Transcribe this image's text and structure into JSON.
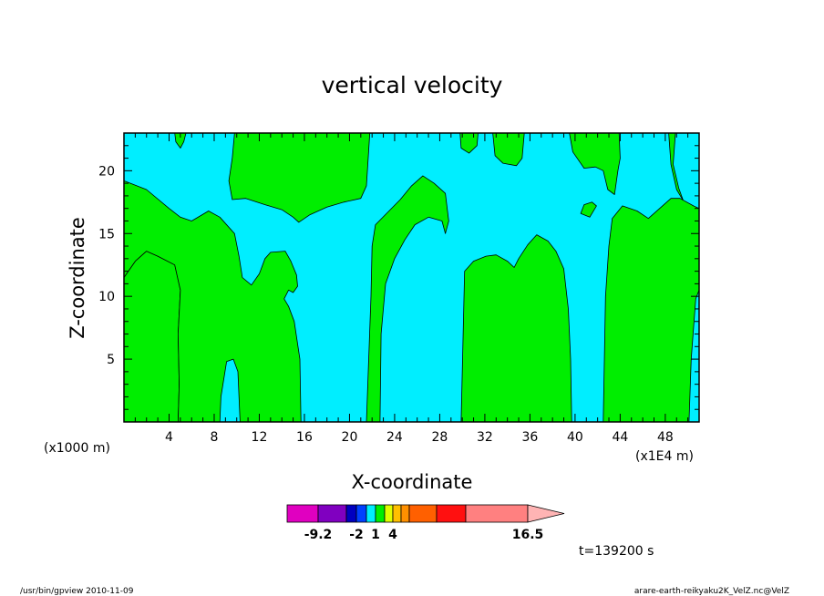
{
  "chart_data": {
    "type": "contour",
    "title": "vertical velocity",
    "xlabel": "X-coordinate",
    "ylabel": "Z-coordinate",
    "x_unit": "(x1000 m)",
    "x_unit_right": "(x1E4 m)",
    "xlim": [
      0,
      51
    ],
    "ylim": [
      0,
      23
    ],
    "x_ticks": [
      4,
      8,
      12,
      16,
      20,
      24,
      28,
      32,
      36,
      40,
      44,
      48
    ],
    "y_ticks": [
      5,
      10,
      15,
      20
    ],
    "time_label": "t=139200 s",
    "background_color": "#00eeff",
    "contour_fill_color": "#00ee00",
    "regions": [
      {
        "name": "left-bottom-lobe",
        "points": [
          [
            0,
            11.5
          ],
          [
            1,
            12.8
          ],
          [
            2,
            13.6
          ],
          [
            3,
            13.2
          ],
          [
            4.5,
            12.5
          ],
          [
            5,
            10.5
          ],
          [
            4.8,
            7
          ],
          [
            4.9,
            3
          ],
          [
            4.8,
            0
          ],
          [
            0,
            0
          ]
        ]
      },
      {
        "name": "left-arm",
        "points": [
          [
            0,
            19.2
          ],
          [
            2,
            18.5
          ],
          [
            4,
            17
          ],
          [
            5,
            16.3
          ],
          [
            6,
            16
          ],
          [
            7.5,
            16.8
          ],
          [
            8.5,
            16.3
          ],
          [
            9.8,
            15
          ],
          [
            10.2,
            13.2
          ],
          [
            10.5,
            11.5
          ],
          [
            11.3,
            10.9
          ],
          [
            12,
            11.8
          ],
          [
            12.5,
            13
          ],
          [
            13,
            13.5
          ],
          [
            14.3,
            13.6
          ],
          [
            14.8,
            12.8
          ],
          [
            15.3,
            11.7
          ],
          [
            15.4,
            10.8
          ],
          [
            15,
            10.3
          ],
          [
            14.6,
            10.5
          ],
          [
            14.2,
            9.8
          ],
          [
            14.6,
            9.2
          ],
          [
            15.1,
            8
          ],
          [
            15.6,
            5
          ],
          [
            15.7,
            0
          ],
          [
            10.3,
            0
          ],
          [
            10.1,
            4
          ],
          [
            9.7,
            5
          ],
          [
            9.1,
            4.8
          ],
          [
            8.6,
            2
          ],
          [
            8.5,
            0
          ],
          [
            4.8,
            0
          ],
          [
            4.9,
            3
          ],
          [
            4.8,
            7
          ],
          [
            5,
            10.5
          ],
          [
            4.5,
            12.5
          ],
          [
            3,
            13.2
          ],
          [
            2,
            13.6
          ],
          [
            1,
            12.8
          ],
          [
            0,
            11.5
          ]
        ]
      },
      {
        "name": "top-left-blob",
        "points": [
          [
            4.5,
            23
          ],
          [
            4.6,
            22.3
          ],
          [
            5,
            21.8
          ],
          [
            5.3,
            22.3
          ],
          [
            5.5,
            23
          ]
        ]
      },
      {
        "name": "upper-left-tongue",
        "points": [
          [
            9.8,
            23
          ],
          [
            9.6,
            21
          ],
          [
            9.3,
            19.2
          ],
          [
            9.6,
            17.7
          ],
          [
            10.8,
            17.8
          ],
          [
            12.5,
            17.3
          ],
          [
            14,
            16.9
          ],
          [
            15,
            16.3
          ],
          [
            15.5,
            15.9
          ],
          [
            16.5,
            16.5
          ],
          [
            18,
            17.1
          ],
          [
            19.5,
            17.5
          ],
          [
            21,
            17.8
          ],
          [
            21.5,
            18.8
          ],
          [
            21.8,
            23
          ]
        ]
      },
      {
        "name": "center-plume",
        "points": [
          [
            21.5,
            0
          ],
          [
            21.9,
            10
          ],
          [
            22,
            14
          ],
          [
            22.3,
            15.7
          ],
          [
            23.5,
            16.8
          ],
          [
            24.5,
            17.7
          ],
          [
            25.5,
            18.8
          ],
          [
            26.5,
            19.6
          ],
          [
            27.5,
            19
          ],
          [
            28.5,
            18.2
          ],
          [
            28.8,
            16
          ],
          [
            28.5,
            15
          ],
          [
            28.2,
            16
          ],
          [
            27,
            16.3
          ],
          [
            25.8,
            15.7
          ],
          [
            24.9,
            14.5
          ],
          [
            24,
            13
          ],
          [
            23.2,
            11
          ],
          [
            22.8,
            7
          ],
          [
            22.7,
            0
          ]
        ]
      },
      {
        "name": "top-blob-30",
        "points": [
          [
            29.8,
            23
          ],
          [
            29.9,
            21.8
          ],
          [
            30.6,
            21.4
          ],
          [
            31.3,
            22
          ],
          [
            31.4,
            23
          ]
        ]
      },
      {
        "name": "top-blob-33",
        "points": [
          [
            32.7,
            23
          ],
          [
            32.9,
            21.2
          ],
          [
            33.6,
            20.6
          ],
          [
            34.8,
            20.4
          ],
          [
            35.3,
            21
          ],
          [
            35.5,
            23
          ]
        ]
      },
      {
        "name": "top-right-lobe",
        "points": [
          [
            39.5,
            23
          ],
          [
            39.8,
            21.5
          ],
          [
            40.8,
            20.2
          ],
          [
            41.8,
            20.3
          ],
          [
            42.5,
            20
          ],
          [
            42.9,
            18.5
          ],
          [
            43.5,
            18.1
          ],
          [
            43.8,
            20
          ],
          [
            44,
            21
          ],
          [
            43.9,
            23
          ]
        ]
      },
      {
        "name": "top-right-blob-48",
        "points": [
          [
            48.3,
            23
          ],
          [
            48.5,
            20.5
          ],
          [
            49,
            18.5
          ],
          [
            49.6,
            17.6
          ],
          [
            49.2,
            18.6
          ],
          [
            48.7,
            20.5
          ],
          [
            48.9,
            23
          ]
        ]
      },
      {
        "name": "small-island-41",
        "points": [
          [
            40.5,
            16.6
          ],
          [
            41.3,
            16.3
          ],
          [
            41.9,
            17.2
          ],
          [
            41.5,
            17.5
          ],
          [
            40.8,
            17.3
          ]
        ]
      },
      {
        "name": "center-right-dome",
        "points": [
          [
            29.9,
            0
          ],
          [
            30.2,
            12
          ],
          [
            31,
            12.8
          ],
          [
            32.1,
            13.2
          ],
          [
            33,
            13.3
          ],
          [
            34,
            12.8
          ],
          [
            34.6,
            12.3
          ],
          [
            35,
            13
          ],
          [
            35.8,
            14.1
          ],
          [
            36.6,
            14.9
          ],
          [
            37.6,
            14.4
          ],
          [
            38.3,
            13.6
          ],
          [
            39,
            12.2
          ],
          [
            39.4,
            9
          ],
          [
            39.6,
            5
          ],
          [
            39.7,
            0
          ]
        ]
      },
      {
        "name": "right-dome",
        "points": [
          [
            42.5,
            0
          ],
          [
            42.7,
            10
          ],
          [
            43,
            14
          ],
          [
            43.3,
            16.2
          ],
          [
            44.2,
            17.2
          ],
          [
            45.5,
            16.8
          ],
          [
            46.5,
            16.2
          ],
          [
            47.5,
            17
          ],
          [
            48.5,
            17.8
          ],
          [
            49.3,
            17.8
          ],
          [
            50.5,
            17.2
          ],
          [
            51,
            17
          ],
          [
            51,
            10.5
          ],
          [
            50.7,
            9.8
          ],
          [
            50.3,
            5
          ],
          [
            50.1,
            0
          ]
        ]
      }
    ],
    "colorbar": {
      "colors": [
        "#e000c0",
        "#8000c0",
        "#0000c0",
        "#0040ff",
        "#00eeff",
        "#00ee00",
        "#e0ff00",
        "#ffc000",
        "#ff9000",
        "#ff6000",
        "#ff1010",
        "#ff8080"
      ],
      "arrow_color": "#ffb4b4",
      "labels": [
        {
          "text": "-9.2",
          "index": 1
        },
        {
          "text": "-2",
          "index": 3
        },
        {
          "text": "1",
          "index": 5
        },
        {
          "text": "4",
          "index": 7
        },
        {
          "text": "16.5",
          "index": 12
        }
      ]
    },
    "footer_left": "/usr/bin/gpview   2010-11-09",
    "footer_right": "arare-earth-reikyaku2K_VelZ.nc@VelZ"
  }
}
